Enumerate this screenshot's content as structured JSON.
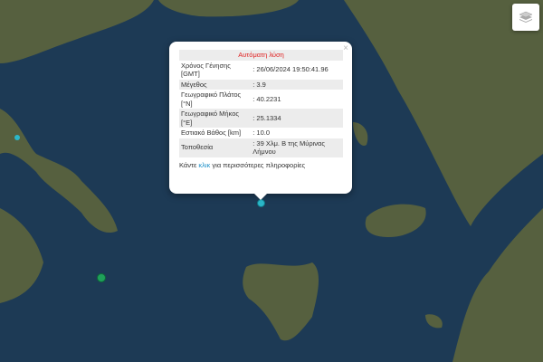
{
  "popup": {
    "title": "Αυτόματη λύση",
    "close": "×",
    "rows": [
      {
        "label": "Χρόνος Γένησης [GMT]",
        "value": ": 26/06/2024 19:50:41.96"
      },
      {
        "label": "Μέγεθος",
        "value": ": 3.9"
      },
      {
        "label": "Γεωγραφικό Πλάτος [°N]",
        "value": ": 40.2231"
      },
      {
        "label": "Γεωγραφικό Μήκος [°E]",
        "value": ": 25.1334"
      },
      {
        "label": "Εστιακό Βάθος [km]",
        "value": ": 10.0"
      },
      {
        "label": "Τοποθεσία",
        "value": ": 39 Χλμ. Β της Μύρινας Λήμνου"
      }
    ],
    "footer_pre": "Κάντε ",
    "footer_link": "κλικ",
    "footer_post": " για περισσότερες πληροφορίες"
  },
  "controls": {
    "layers_icon": "layers-icon"
  },
  "colors": {
    "sea": "#1d3a55",
    "land": "#4a5a3a",
    "marker_cyan": "#2bb7c9",
    "marker_green": "#1fa05a"
  }
}
